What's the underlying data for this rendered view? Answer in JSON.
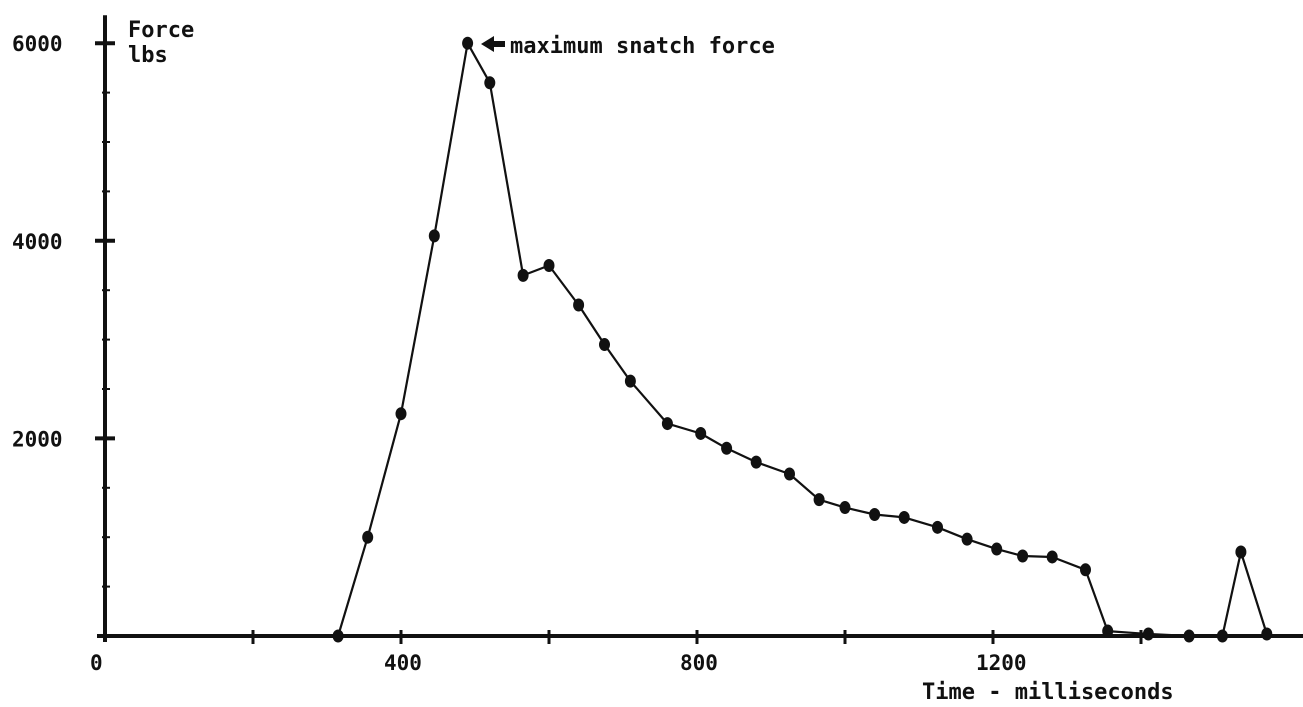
{
  "chart_data": {
    "type": "line",
    "title": "",
    "ylabel": "Force lbs",
    "ylabel_lines": [
      "Force",
      "lbs"
    ],
    "xlabel": "Time - milliseconds",
    "xlim": [
      0,
      1590
    ],
    "ylim": [
      0,
      6000
    ],
    "x_ticks": [
      0,
      400,
      800,
      1200
    ],
    "y_ticks": [
      2000,
      4000,
      6000
    ],
    "x_tick_labels": [
      "0",
      "400",
      "800",
      "1200"
    ],
    "y_tick_labels": [
      "2000",
      "4000",
      "6000"
    ],
    "grid": false,
    "annotation": {
      "text": "maximum snatch force",
      "x": 490,
      "y": 6000
    },
    "series": [
      {
        "points": [
          [
            315,
            0
          ],
          [
            355,
            1000
          ],
          [
            400,
            2250
          ],
          [
            445,
            4050
          ],
          [
            490,
            6000
          ],
          [
            520,
            5600
          ],
          [
            565,
            3650
          ],
          [
            600,
            3750
          ],
          [
            640,
            3350
          ],
          [
            675,
            2950
          ],
          [
            710,
            2580
          ],
          [
            760,
            2150
          ],
          [
            805,
            2050
          ],
          [
            840,
            1900
          ],
          [
            880,
            1760
          ],
          [
            925,
            1640
          ],
          [
            965,
            1380
          ],
          [
            1000,
            1300
          ],
          [
            1040,
            1230
          ],
          [
            1080,
            1200
          ],
          [
            1125,
            1100
          ],
          [
            1165,
            980
          ],
          [
            1205,
            880
          ],
          [
            1240,
            810
          ],
          [
            1280,
            800
          ],
          [
            1325,
            670
          ],
          [
            1355,
            50
          ],
          [
            1410,
            20
          ],
          [
            1465,
            0
          ],
          [
            1510,
            0
          ],
          [
            1535,
            850
          ],
          [
            1570,
            20
          ]
        ]
      }
    ]
  }
}
